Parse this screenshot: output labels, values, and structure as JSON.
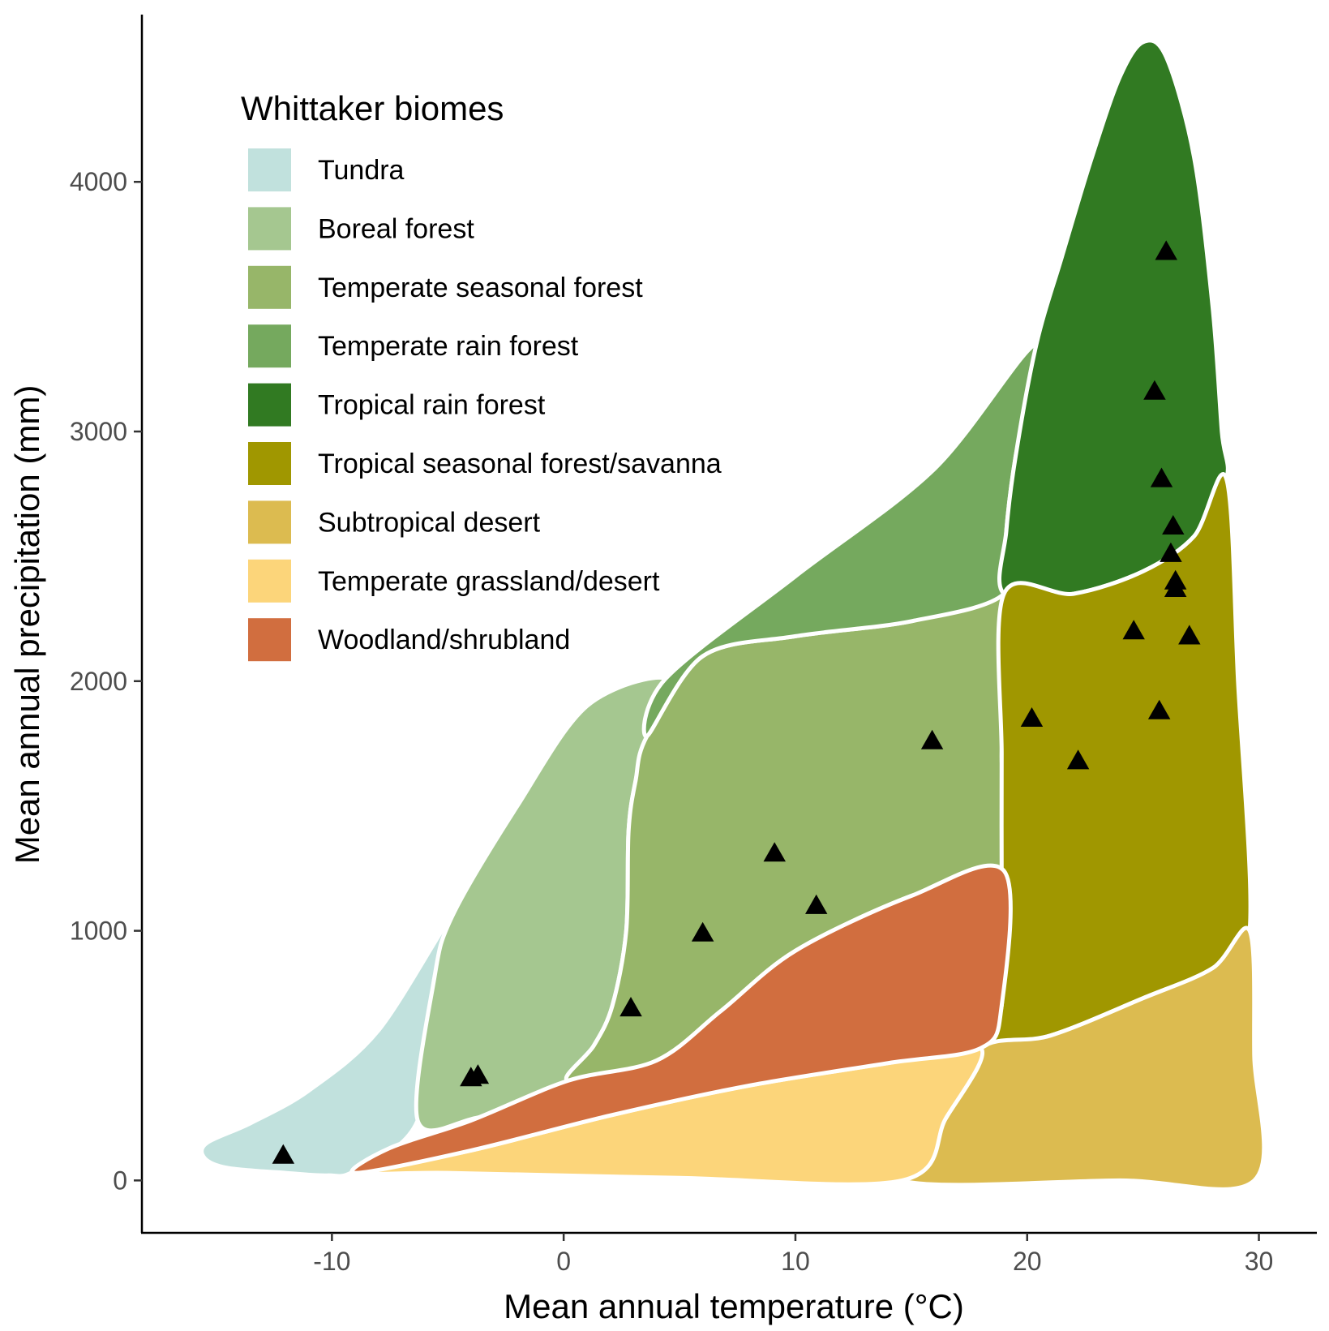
{
  "chart_data": {
    "type": "scatter",
    "title": "",
    "xlabel": "Mean annual temperature (°C)",
    "ylabel": "Mean annual precipitation (mm)",
    "xlim": [
      -18.2,
      32.5
    ],
    "ylim": [
      -210,
      4670
    ],
    "x_ticks": [
      -10,
      0,
      10,
      20,
      30
    ],
    "y_ticks": [
      0,
      1000,
      2000,
      3000,
      4000
    ],
    "grid": false,
    "legend": {
      "title": "Whittaker biomes",
      "position": "top-left",
      "entries": [
        {
          "label": "Tundra",
          "color": "#C1E1DD"
        },
        {
          "label": "Boreal forest",
          "color": "#A5C790"
        },
        {
          "label": "Temperate seasonal forest",
          "color": "#97B669"
        },
        {
          "label": "Temperate rain forest",
          "color": "#75A95E"
        },
        {
          "label": "Tropical rain forest",
          "color": "#317A22"
        },
        {
          "label": "Tropical seasonal forest/savanna",
          "color": "#A09700"
        },
        {
          "label": "Subtropical desert",
          "color": "#DCBB50"
        },
        {
          "label": "Temperate grassland/desert",
          "color": "#FCD57A"
        },
        {
          "label": "Woodland/shrubland",
          "color": "#D16E3F"
        }
      ]
    },
    "biomes": [
      {
        "name": "Tundra",
        "color": "#C1E1DD",
        "boundary": [
          [
            -15.5,
            90
          ],
          [
            -15.4,
            150
          ],
          [
            -13.5,
            230
          ],
          [
            -11,
            360
          ],
          [
            -8,
            600
          ],
          [
            -4.8,
            1060
          ],
          [
            -5.6,
            800
          ],
          [
            -6.3,
            240
          ],
          [
            -9,
            40
          ],
          [
            -10.2,
            20
          ],
          [
            -12,
            30
          ],
          [
            -14.5,
            50
          ]
        ]
      },
      {
        "name": "Boreal forest",
        "color": "#A5C790",
        "boundary": [
          [
            -4.8,
            1060
          ],
          [
            -2,
            1500
          ],
          [
            1,
            1900
          ],
          [
            4.4,
            2010
          ],
          [
            3.6,
            1780
          ],
          [
            3.1,
            1600
          ],
          [
            2.8,
            1400
          ],
          [
            2.7,
            1000
          ],
          [
            2.1,
            700
          ],
          [
            1.3,
            540
          ],
          [
            0.2,
            400
          ],
          [
            -0.7,
            340
          ],
          [
            -3.8,
            250
          ],
          [
            -6.3,
            240
          ],
          [
            -5.6,
            800
          ]
        ]
      },
      {
        "name": "Temperate seasonal forest",
        "color": "#97B669",
        "boundary": [
          [
            3.6,
            1780
          ],
          [
            6,
            2100
          ],
          [
            10,
            2180
          ],
          [
            15,
            2240
          ],
          [
            19,
            2350
          ],
          [
            18.9,
            1700
          ],
          [
            19,
            1240
          ],
          [
            15,
            1140
          ],
          [
            10,
            920
          ],
          [
            6.8,
            680
          ],
          [
            4,
            480
          ],
          [
            0.2,
            400
          ],
          [
            1.3,
            540
          ],
          [
            2.1,
            700
          ],
          [
            2.7,
            1000
          ],
          [
            2.8,
            1400
          ],
          [
            3.1,
            1600
          ]
        ]
      },
      {
        "name": "Temperate rain forest",
        "color": "#75A95E",
        "boundary": [
          [
            4.4,
            2010
          ],
          [
            10,
            2420
          ],
          [
            16,
            2850
          ],
          [
            20.4,
            3350
          ],
          [
            19.5,
            2900
          ],
          [
            19.1,
            2600
          ],
          [
            19,
            2350
          ],
          [
            15,
            2240
          ],
          [
            10,
            2180
          ],
          [
            6,
            2100
          ],
          [
            3.6,
            1780
          ]
        ]
      },
      {
        "name": "Tropical rain forest",
        "color": "#317A22",
        "boundary": [
          [
            20.4,
            3350
          ],
          [
            21.5,
            3700
          ],
          [
            22.8,
            4100
          ],
          [
            24,
            4420
          ],
          [
            25,
            4560
          ],
          [
            26,
            4500
          ],
          [
            27.2,
            4100
          ],
          [
            28,
            3500
          ],
          [
            28.4,
            3000
          ],
          [
            28.6,
            2810
          ],
          [
            27.2,
            2580
          ],
          [
            25,
            2440
          ],
          [
            22,
            2350
          ],
          [
            19,
            2350
          ],
          [
            19.1,
            2600
          ],
          [
            19.5,
            2900
          ]
        ]
      },
      {
        "name": "Tropical seasonal forest/savanna",
        "color": "#A09700",
        "boundary": [
          [
            19,
            2350
          ],
          [
            22,
            2350
          ],
          [
            25,
            2440
          ],
          [
            27.2,
            2580
          ],
          [
            28.6,
            2810
          ],
          [
            29.1,
            2000
          ],
          [
            29.6,
            1000
          ],
          [
            28,
            850
          ],
          [
            25,
            730
          ],
          [
            21,
            580
          ],
          [
            18,
            530
          ],
          [
            18.9,
            700
          ],
          [
            18.9,
            1240
          ],
          [
            18.9,
            1700
          ]
        ]
      },
      {
        "name": "Subtropical desert",
        "color": "#DCBB50",
        "boundary": [
          [
            18,
            530
          ],
          [
            21,
            580
          ],
          [
            25,
            730
          ],
          [
            28,
            850
          ],
          [
            29.6,
            1000
          ],
          [
            29.8,
            500
          ],
          [
            29.8,
            0
          ],
          [
            24,
            0
          ],
          [
            14.6,
            0
          ],
          [
            16.5,
            250
          ]
        ]
      },
      {
        "name": "Temperate grassland/desert",
        "color": "#FCD57A",
        "boundary": [
          [
            -9,
            30
          ],
          [
            -4,
            120
          ],
          [
            2,
            260
          ],
          [
            8,
            380
          ],
          [
            14,
            470
          ],
          [
            18,
            530
          ],
          [
            16.5,
            250
          ],
          [
            14.6,
            0
          ],
          [
            5,
            10
          ],
          [
            -5,
            30
          ]
        ]
      },
      {
        "name": "Woodland/shrubland",
        "color": "#D16E3F",
        "boundary": [
          [
            -9,
            30
          ],
          [
            -7.5,
            130
          ],
          [
            -4,
            240
          ],
          [
            0.2,
            400
          ],
          [
            4,
            480
          ],
          [
            6.8,
            680
          ],
          [
            10,
            920
          ],
          [
            15,
            1140
          ],
          [
            19,
            1240
          ],
          [
            18.9,
            700
          ],
          [
            18,
            530
          ],
          [
            14,
            470
          ],
          [
            8,
            380
          ],
          [
            2,
            260
          ],
          [
            -4,
            120
          ]
        ]
      }
    ],
    "points": [
      {
        "x": -12.1,
        "y": 100
      },
      {
        "x": -4.0,
        "y": 410
      },
      {
        "x": -3.7,
        "y": 420
      },
      {
        "x": 2.9,
        "y": 690
      },
      {
        "x": 6.0,
        "y": 990
      },
      {
        "x": 9.1,
        "y": 1310
      },
      {
        "x": 10.9,
        "y": 1100
      },
      {
        "x": 15.9,
        "y": 1760
      },
      {
        "x": 20.2,
        "y": 1850
      },
      {
        "x": 22.2,
        "y": 1680
      },
      {
        "x": 24.6,
        "y": 2200
      },
      {
        "x": 25.5,
        "y": 3160
      },
      {
        "x": 25.7,
        "y": 1880
      },
      {
        "x": 25.8,
        "y": 2810
      },
      {
        "x": 26.0,
        "y": 3720
      },
      {
        "x": 26.2,
        "y": 2510
      },
      {
        "x": 26.3,
        "y": 2620
      },
      {
        "x": 26.4,
        "y": 2370
      },
      {
        "x": 26.4,
        "y": 2400
      },
      {
        "x": 27.0,
        "y": 2180
      }
    ]
  }
}
